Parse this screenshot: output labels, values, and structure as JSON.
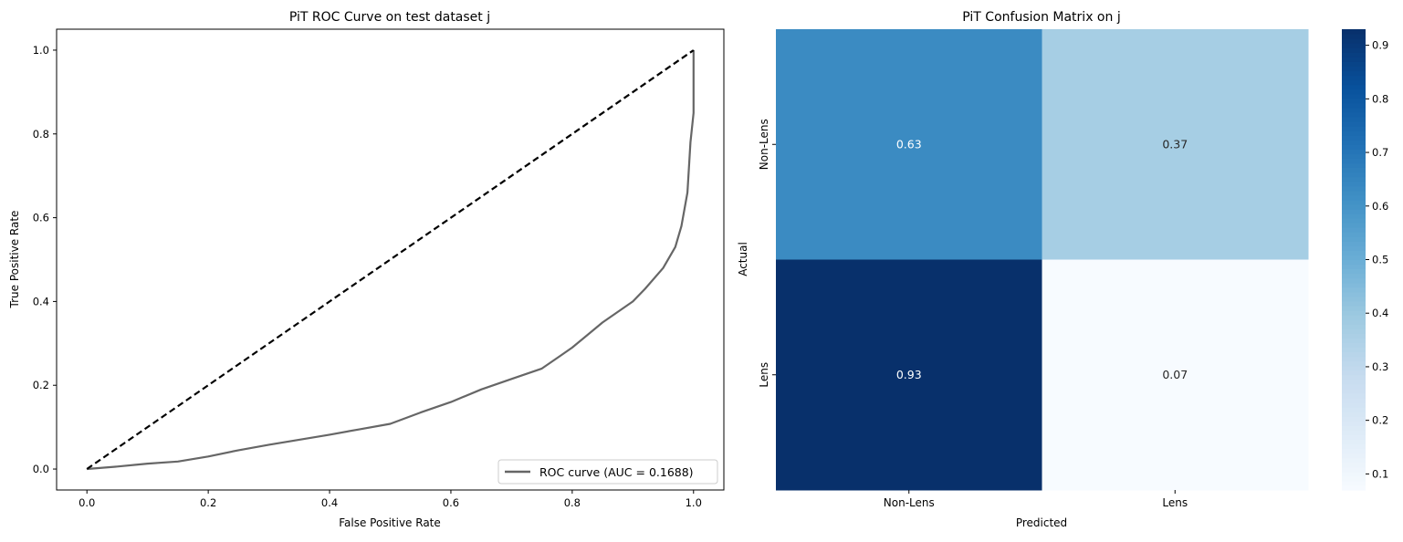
{
  "chart_data": [
    {
      "type": "line",
      "title": "PiT ROC Curve on test dataset j",
      "xlabel": "False Positive Rate",
      "ylabel": "True Positive Rate",
      "xlim": [
        -0.05,
        1.05
      ],
      "ylim": [
        -0.05,
        1.05
      ],
      "xticks": [
        "0.0",
        "0.2",
        "0.4",
        "0.6",
        "0.8",
        "1.0"
      ],
      "yticks": [
        "0.0",
        "0.2",
        "0.4",
        "0.6",
        "0.8",
        "1.0"
      ],
      "grid": false,
      "legend_position": "lower-right",
      "series": [
        {
          "name": "ROC curve (AUC = 0.1688)",
          "color": "#666666",
          "x": [
            0,
            0.05,
            0.1,
            0.15,
            0.2,
            0.25,
            0.3,
            0.35,
            0.4,
            0.45,
            0.5,
            0.55,
            0.6,
            0.65,
            0.7,
            0.75,
            0.78,
            0.8,
            0.85,
            0.9,
            0.92,
            0.95,
            0.97,
            0.98,
            0.99,
            0.995,
            1.0,
            1.0
          ],
          "y": [
            0,
            0.006,
            0.013,
            0.018,
            0.03,
            0.045,
            0.058,
            0.07,
            0.082,
            0.095,
            0.108,
            0.135,
            0.16,
            0.19,
            0.215,
            0.24,
            0.27,
            0.29,
            0.35,
            0.4,
            0.43,
            0.48,
            0.53,
            0.58,
            0.66,
            0.78,
            0.85,
            1.0
          ]
        },
        {
          "color": "#000000",
          "style": "dashed",
          "x": [
            0,
            1
          ],
          "y": [
            0,
            1
          ]
        }
      ]
    },
    {
      "type": "heatmap",
      "title": "PiT Confusion Matrix on j",
      "xlabel": "Predicted",
      "ylabel": "Actual",
      "x_categories": [
        "Non-Lens",
        "Lens"
      ],
      "y_categories": [
        "Non-Lens",
        "Lens"
      ],
      "values": [
        [
          0.63,
          0.37
        ],
        [
          0.93,
          0.07
        ]
      ],
      "labels": [
        [
          "0.63",
          "0.37"
        ],
        [
          "0.93",
          "0.07"
        ]
      ],
      "colormap": "Blues",
      "colorbar": {
        "range": [
          0.07,
          0.93
        ],
        "ticks": [
          "0.1",
          "0.2",
          "0.3",
          "0.4",
          "0.5",
          "0.6",
          "0.7",
          "0.8",
          "0.9"
        ]
      }
    }
  ]
}
